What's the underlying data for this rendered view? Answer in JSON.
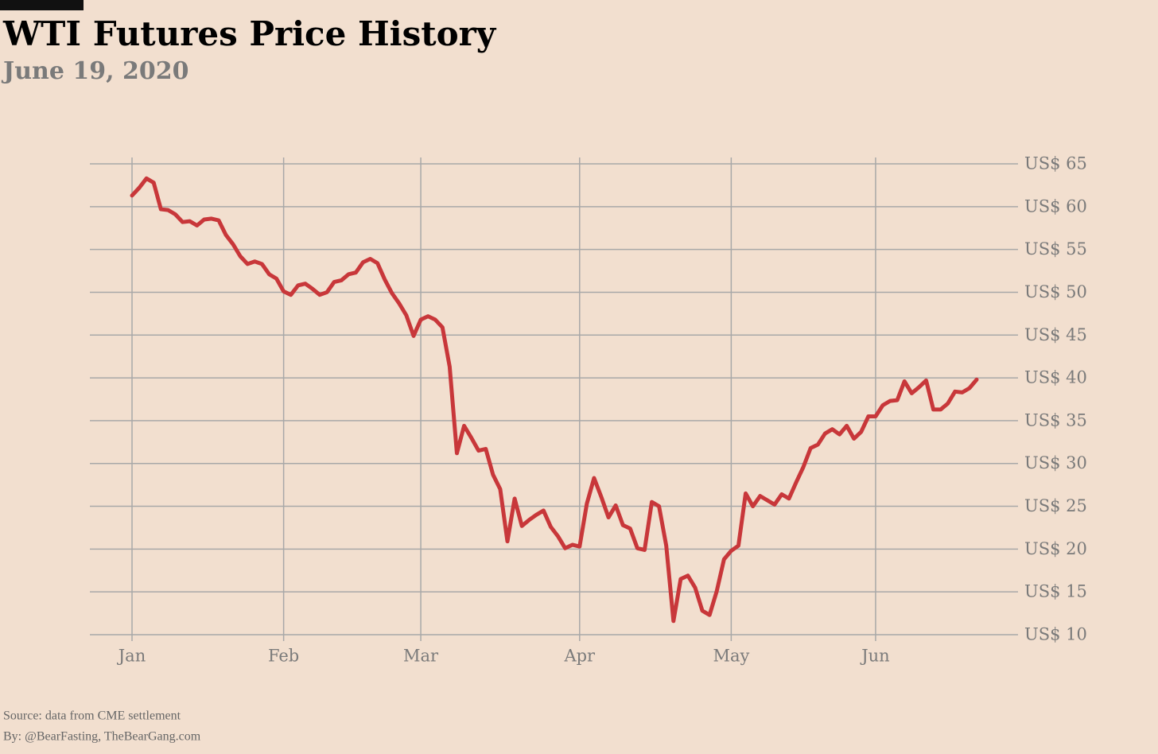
{
  "chart_data": {
    "type": "line",
    "title": "WTI Futures Price History",
    "subtitle": "June 19, 2020",
    "notes": [
      "Source: data from CME settlement",
      "By: @BearFasting, TheBearGang.com"
    ],
    "categories": [
      "Jan",
      null,
      null,
      null,
      null,
      null,
      null,
      null,
      null,
      null,
      null,
      null,
      null,
      null,
      null,
      null,
      null,
      null,
      null,
      null,
      null,
      "Feb",
      null,
      null,
      null,
      null,
      null,
      null,
      null,
      null,
      null,
      null,
      null,
      null,
      null,
      null,
      null,
      null,
      null,
      null,
      "Mar",
      null,
      null,
      null,
      null,
      null,
      null,
      null,
      null,
      null,
      null,
      null,
      null,
      null,
      null,
      null,
      null,
      null,
      null,
      null,
      null,
      null,
      "Apr",
      null,
      null,
      null,
      null,
      null,
      null,
      null,
      null,
      null,
      null,
      null,
      null,
      null,
      null,
      null,
      null,
      null,
      null,
      null,
      null,
      "May",
      null,
      null,
      null,
      null,
      null,
      null,
      null,
      null,
      null,
      null,
      null,
      null,
      null,
      null,
      null,
      null,
      null,
      null,
      null,
      "Jun",
      null,
      null,
      null,
      null,
      null,
      null,
      null,
      null,
      null,
      null,
      null,
      null,
      null,
      null
    ],
    "values": [
      61.3,
      62.2,
      63.3,
      62.8,
      59.7,
      59.6,
      59.1,
      58.2,
      58.3,
      57.8,
      58.5,
      58.6,
      58.4,
      56.7,
      55.6,
      54.2,
      53.3,
      53.6,
      53.3,
      52.1,
      51.6,
      50.1,
      49.7,
      50.8,
      51.0,
      50.4,
      49.7,
      50.0,
      51.2,
      51.4,
      52.1,
      52.3,
      53.5,
      53.9,
      53.4,
      51.5,
      49.9,
      48.7,
      47.3,
      44.9,
      46.8,
      47.2,
      46.8,
      45.9,
      41.3,
      31.2,
      34.4,
      33.0,
      31.5,
      31.7,
      28.7,
      27.0,
      20.9,
      25.9,
      22.7,
      23.4,
      24.0,
      24.5,
      22.6,
      21.5,
      20.1,
      20.5,
      20.3,
      25.3,
      28.3,
      26.1,
      23.7,
      25.1,
      22.8,
      22.4,
      20.1,
      19.9,
      25.5,
      25.0,
      20.4,
      11.6,
      16.5,
      16.9,
      15.5,
      12.8,
      12.3,
      15.1,
      18.8,
      19.8,
      20.4,
      26.5,
      25.0,
      26.2,
      25.7,
      25.2,
      26.4,
      25.9,
      27.8,
      29.6,
      31.8,
      32.2,
      33.5,
      34.0,
      33.4,
      34.4,
      32.9,
      33.7,
      35.5,
      35.5,
      36.8,
      37.3,
      37.4,
      39.6,
      38.2,
      38.9,
      39.7,
      36.3,
      36.3,
      37.0,
      38.4,
      38.3,
      38.8,
      39.8
    ],
    "color": "#c8373a",
    "ylim": [
      10,
      65
    ],
    "yticks": [
      {
        "value": 10,
        "label": "US$ 10"
      },
      {
        "value": 15,
        "label": "US$ 15"
      },
      {
        "value": 20,
        "label": "US$ 20"
      },
      {
        "value": 25,
        "label": "US$ 25"
      },
      {
        "value": 30,
        "label": "US$ 30"
      },
      {
        "value": 35,
        "label": "US$ 35"
      },
      {
        "value": 40,
        "label": "US$ 40"
      },
      {
        "value": 45,
        "label": "US$ 45"
      },
      {
        "value": 50,
        "label": "US$ 50"
      },
      {
        "value": 55,
        "label": "US$ 55"
      },
      {
        "value": 60,
        "label": "US$ 60"
      },
      {
        "value": 65,
        "label": "US$ 65"
      }
    ],
    "grid": true
  }
}
